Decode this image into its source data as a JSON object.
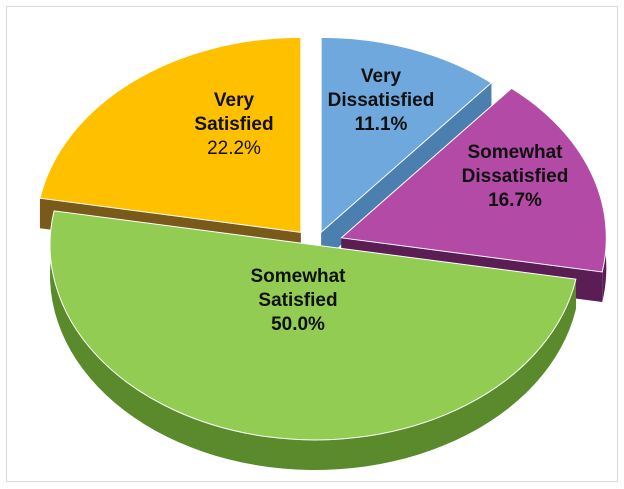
{
  "chart_data": {
    "type": "pie",
    "style": "3d-exploded",
    "legend": "none",
    "slices": [
      {
        "label_lines": [
          "Very",
          "Dissatisfied"
        ],
        "value": "11.1%",
        "percent": 11.1,
        "color": "#6fa8dc",
        "side_color": "#4a7fb0"
      },
      {
        "label_lines": [
          "Somewhat",
          "Dissatisfied"
        ],
        "value": "16.7%",
        "percent": 16.7,
        "color": "#b24aa6",
        "side_color": "#5a1e55"
      },
      {
        "label_lines": [
          "Somewhat",
          "Satisfied"
        ],
        "value": "50.0%",
        "percent": 50.0,
        "color": "#92cc52",
        "side_color": "#5a8a2c"
      },
      {
        "label_lines": [
          "Very",
          "Satisfied"
        ],
        "value": "22.2%",
        "percent": 22.2,
        "color": "#ffc000",
        "side_color": "#7a5a1a"
      }
    ]
  }
}
